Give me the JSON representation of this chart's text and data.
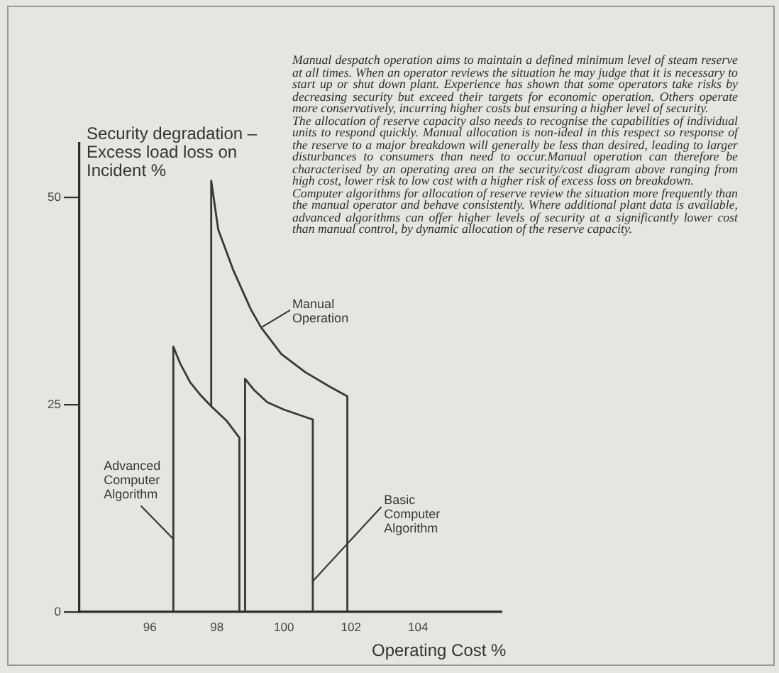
{
  "chart_data": {
    "type": "line",
    "xlabel": "Operating Cost %",
    "ylabel": "Security degradation – Excess load loss on Incident %",
    "xlim": [
      93.9,
      106.5
    ],
    "xticks": [
      96,
      98,
      100,
      102,
      104
    ],
    "ylim": [
      0,
      56.5
    ],
    "yticks": [
      0,
      25,
      50
    ],
    "marker": "none",
    "line_style": "solid",
    "series": [
      {
        "name": "Manual Operation",
        "color": "#383838",
        "x": [
          97.83,
          97.83,
          98.04,
          98.48,
          99.01,
          99.32,
          99.92,
          100.64,
          101.35,
          101.89,
          101.89
        ],
        "values": [
          24.8,
          52,
          46.1,
          41.3,
          36.5,
          34.3,
          31.1,
          28.9,
          27.2,
          26,
          0
        ]
      },
      {
        "name": "Advanced Computer Algorithm",
        "color": "#383838",
        "x": [
          96.7,
          96.7,
          96.9,
          97.2,
          97.5,
          97.83,
          98.3,
          98.67,
          98.67
        ],
        "values": [
          0,
          32,
          30,
          27.7,
          26.2,
          24.8,
          23,
          21,
          0
        ]
      },
      {
        "name": "Basic Computer Algorithm",
        "color": "#383838",
        "x": [
          98.84,
          98.84,
          99.1,
          99.5,
          100,
          100.86,
          100.86
        ],
        "values": [
          0,
          28.1,
          26.8,
          25.3,
          24.4,
          23.2,
          0
        ]
      }
    ],
    "annotations": [
      "Manual despatch operation aims to maintain a defined minimum level of steam reserve at all times. When an operator reviews the situation he may judge that it is necessary to start up or shut down plant. Experience has shown that some operators take risks by decreasing security but exceed their targets for economic operation. Others operate more conservatively, incurring higher costs but ensuring a higher level of security.",
      "The allocation of reserve capacity also needs to recognise the capabilities of individual units to respond quickly. Manual allocation is non-ideal in this respect so response of the reserve to a major breakdown will generally be less than desired, leading to larger disturbances to consumers than need to occur.Manual operation can therefore be characterised by an operating area on the security/cost diagram above ranging from high cost, lower risk to low cost with a higher risk of excess loss on breakdown.",
      "Computer algorithms for allocation of reserve review the situation more frequently than the manual operator and behave consistently. Where additional plant data is available, advanced algorithms can offer higher levels of security at a significantly lower cost than manual control, by dynamic allocation of the reserve capacity."
    ]
  }
}
